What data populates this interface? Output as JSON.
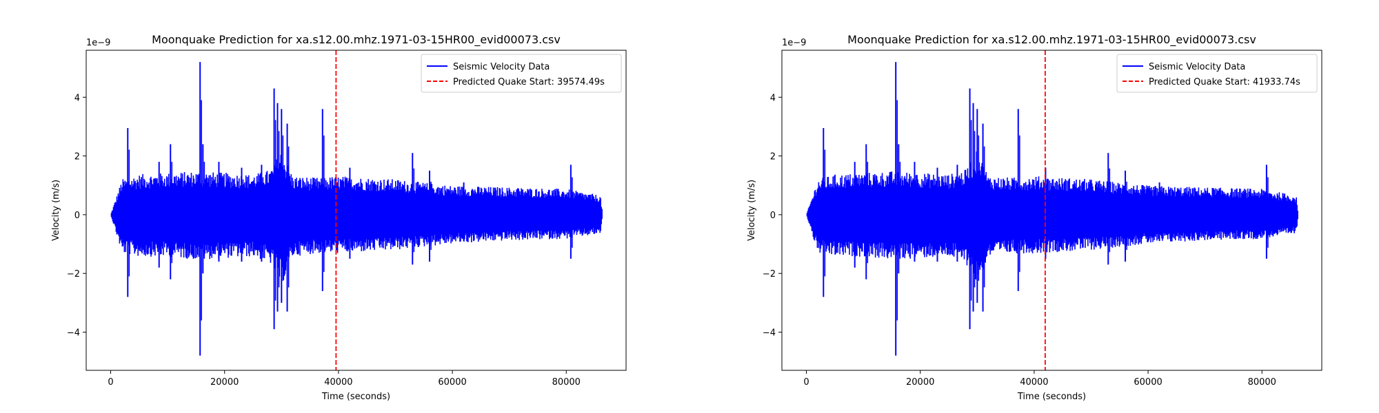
{
  "figure": {
    "background": "#ffffff"
  },
  "chart_data": [
    {
      "type": "line",
      "title": "Moonquake Prediction for xa.s12.00.mhz.1971-03-15HR00_evid00073.csv",
      "xlabel": "Time (seconds)",
      "ylabel": "Velocity (m/s)",
      "y_scale_label": "1e−9",
      "xlim": [
        -4300,
        90500
      ],
      "ylim": [
        -5.3,
        5.6
      ],
      "x_ticks": [
        0,
        20000,
        40000,
        60000,
        80000
      ],
      "x_tick_labels": [
        "0",
        "20000",
        "40000",
        "60000",
        "80000"
      ],
      "y_ticks": [
        -4,
        -2,
        0,
        2,
        4
      ],
      "y_tick_labels": [
        "−4",
        "−2",
        "0",
        "2",
        "4"
      ],
      "grid": false,
      "legend_position": "top-right",
      "series": [
        {
          "name": "Seismic Velocity Data",
          "color": "#0000ff",
          "style": "solid",
          "x_range": [
            0,
            86400
          ],
          "envelope_x": [
            0,
            2000,
            5000,
            10000,
            15000,
            20000,
            25000,
            28000,
            30000,
            32000,
            36000,
            40000,
            50000,
            60000,
            70000,
            80000,
            86000,
            86400
          ],
          "envelope_upper": [
            0.0,
            1.1,
            1.25,
            1.3,
            1.35,
            1.3,
            1.25,
            1.4,
            2.0,
            1.2,
            1.15,
            1.2,
            1.1,
            0.9,
            0.85,
            0.8,
            0.6,
            0.0
          ],
          "envelope_lower": [
            0.0,
            -1.2,
            -1.3,
            -1.3,
            -1.4,
            -1.35,
            -1.3,
            -1.5,
            -2.2,
            -1.3,
            -1.2,
            -1.2,
            -1.1,
            -0.9,
            -0.8,
            -0.75,
            -0.6,
            0.0
          ],
          "spikes": [
            {
              "x": 3000,
              "ymax": 2.95,
              "ymin": -2.8
            },
            {
              "x": 8500,
              "ymax": 1.8,
              "ymin": -1.8
            },
            {
              "x": 10500,
              "ymax": 2.4,
              "ymin": -2.2
            },
            {
              "x": 15700,
              "ymax": 5.2,
              "ymin": -4.8
            },
            {
              "x": 16200,
              "ymax": 2.4,
              "ymin": -2.0
            },
            {
              "x": 19000,
              "ymax": 1.8,
              "ymin": -1.6
            },
            {
              "x": 23000,
              "ymax": 1.6,
              "ymin": -1.6
            },
            {
              "x": 26500,
              "ymax": 1.7,
              "ymin": -1.6
            },
            {
              "x": 28700,
              "ymax": 4.3,
              "ymin": -3.9
            },
            {
              "x": 29300,
              "ymax": 3.8,
              "ymin": -3.3
            },
            {
              "x": 30000,
              "ymax": 3.6,
              "ymin": -3.0
            },
            {
              "x": 31000,
              "ymax": 3.1,
              "ymin": -3.3
            },
            {
              "x": 37200,
              "ymax": 3.6,
              "ymin": -2.6
            },
            {
              "x": 42000,
              "ymax": 1.6,
              "ymin": -1.5
            },
            {
              "x": 53000,
              "ymax": 2.1,
              "ymin": -1.7
            },
            {
              "x": 56000,
              "ymax": 1.5,
              "ymin": -1.6
            },
            {
              "x": 62000,
              "ymax": 1.1,
              "ymin": -0.9
            },
            {
              "x": 71500,
              "ymax": 0.9,
              "ymin": -0.8
            },
            {
              "x": 80800,
              "ymax": 1.7,
              "ymin": -1.5
            }
          ]
        },
        {
          "name": "Predicted Quake Start: 39574.49s",
          "color": "#ff0000",
          "style": "dashed",
          "x": 39574.49
        }
      ]
    },
    {
      "type": "line",
      "title": "Moonquake Prediction for xa.s12.00.mhz.1971-03-15HR00_evid00073.csv",
      "xlabel": "Time (seconds)",
      "ylabel": "Velocity (m/s)",
      "y_scale_label": "1e−9",
      "xlim": [
        -4300,
        90500
      ],
      "ylim": [
        -5.3,
        5.6
      ],
      "x_ticks": [
        0,
        20000,
        40000,
        60000,
        80000
      ],
      "x_tick_labels": [
        "0",
        "20000",
        "40000",
        "60000",
        "80000"
      ],
      "y_ticks": [
        -4,
        -2,
        0,
        2,
        4
      ],
      "y_tick_labels": [
        "−4",
        "−2",
        "0",
        "2",
        "4"
      ],
      "grid": false,
      "legend_position": "top-right",
      "series": [
        {
          "name": "Seismic Velocity Data",
          "color": "#0000ff",
          "style": "solid",
          "x_range": [
            0,
            86400
          ],
          "envelope_x": [
            0,
            2000,
            5000,
            10000,
            15000,
            20000,
            25000,
            28000,
            30000,
            32000,
            36000,
            40000,
            50000,
            60000,
            70000,
            80000,
            86000,
            86400
          ],
          "envelope_upper": [
            0.0,
            1.1,
            1.25,
            1.3,
            1.35,
            1.3,
            1.25,
            1.4,
            2.0,
            1.2,
            1.15,
            1.2,
            1.1,
            0.9,
            0.85,
            0.8,
            0.6,
            0.0
          ],
          "envelope_lower": [
            0.0,
            -1.2,
            -1.3,
            -1.3,
            -1.4,
            -1.35,
            -1.3,
            -1.5,
            -2.2,
            -1.3,
            -1.2,
            -1.2,
            -1.1,
            -0.9,
            -0.8,
            -0.75,
            -0.6,
            0.0
          ],
          "spikes": [
            {
              "x": 3000,
              "ymax": 2.95,
              "ymin": -2.8
            },
            {
              "x": 8500,
              "ymax": 1.8,
              "ymin": -1.8
            },
            {
              "x": 10500,
              "ymax": 2.4,
              "ymin": -2.2
            },
            {
              "x": 15700,
              "ymax": 5.2,
              "ymin": -4.8
            },
            {
              "x": 16200,
              "ymax": 2.4,
              "ymin": -2.0
            },
            {
              "x": 19000,
              "ymax": 1.8,
              "ymin": -1.6
            },
            {
              "x": 23000,
              "ymax": 1.6,
              "ymin": -1.6
            },
            {
              "x": 26500,
              "ymax": 1.7,
              "ymin": -1.6
            },
            {
              "x": 28700,
              "ymax": 4.3,
              "ymin": -3.9
            },
            {
              "x": 29300,
              "ymax": 3.8,
              "ymin": -3.3
            },
            {
              "x": 30000,
              "ymax": 3.6,
              "ymin": -3.0
            },
            {
              "x": 31000,
              "ymax": 3.1,
              "ymin": -3.3
            },
            {
              "x": 37200,
              "ymax": 3.6,
              "ymin": -2.6
            },
            {
              "x": 42000,
              "ymax": 1.6,
              "ymin": -1.5
            },
            {
              "x": 53000,
              "ymax": 2.1,
              "ymin": -1.7
            },
            {
              "x": 56000,
              "ymax": 1.5,
              "ymin": -1.6
            },
            {
              "x": 62000,
              "ymax": 1.1,
              "ymin": -0.9
            },
            {
              "x": 71500,
              "ymax": 0.9,
              "ymin": -0.8
            },
            {
              "x": 80800,
              "ymax": 1.7,
              "ymin": -1.5
            }
          ]
        },
        {
          "name": "Predicted Quake Start: 41933.74s",
          "color": "#ff0000",
          "style": "dashed",
          "x": 41933.74
        }
      ]
    }
  ]
}
